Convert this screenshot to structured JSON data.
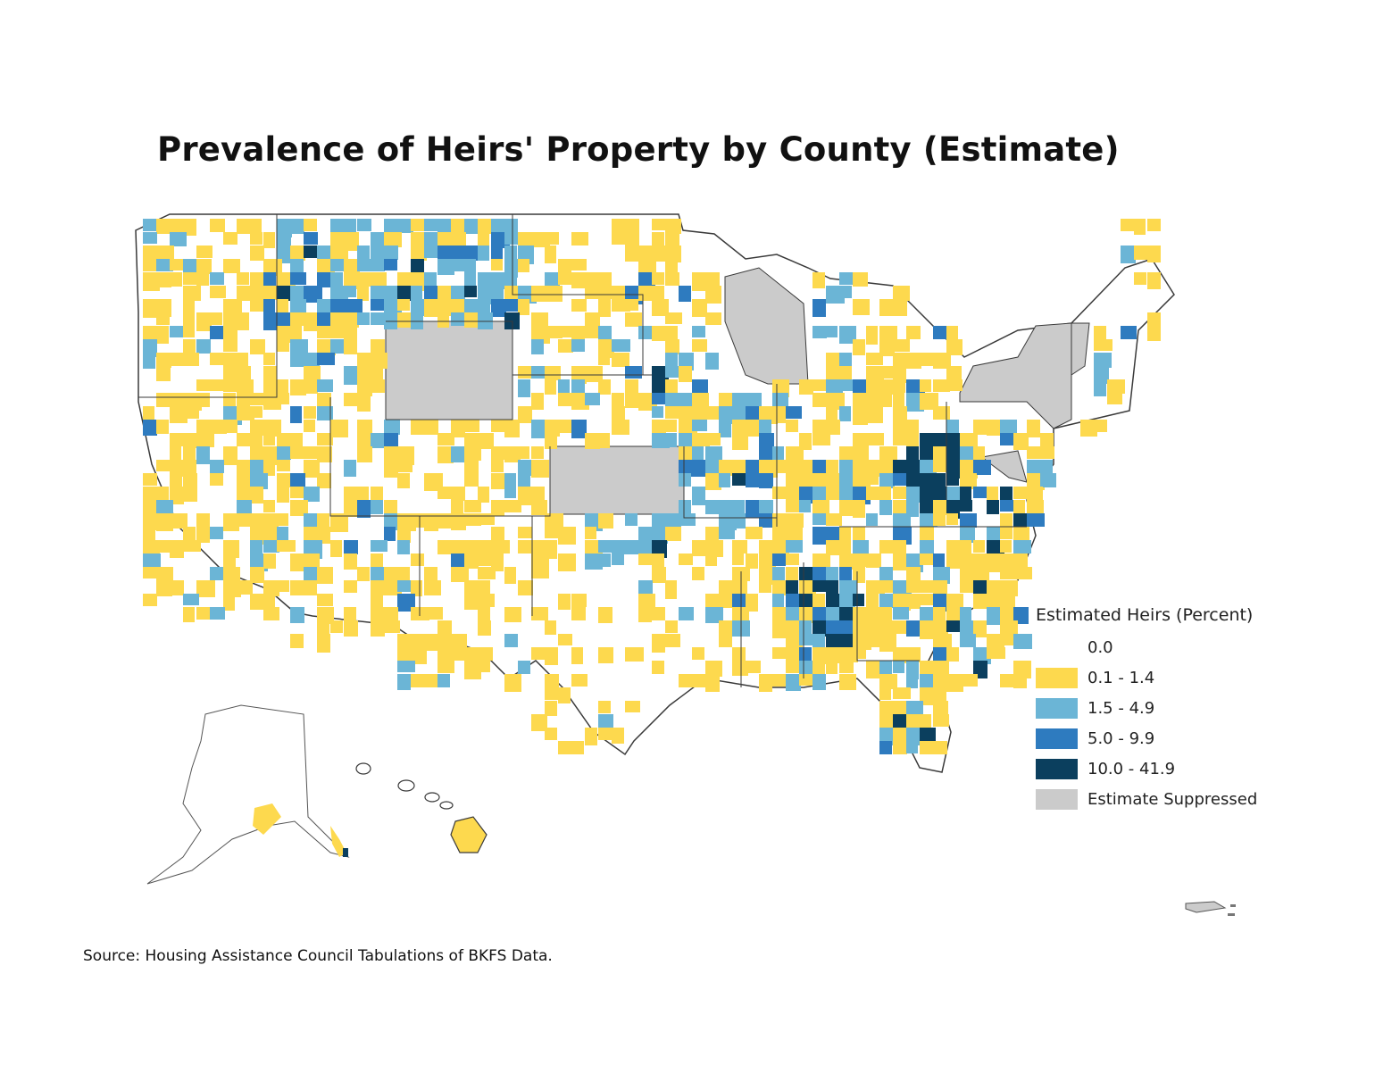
{
  "title": "Prevalence of Heirs' Property by County (Estimate)",
  "source": "Source: Housing Assistance Council Tabulations of BKFS Data.",
  "legend": {
    "title": "Estimated Heirs (Percent)",
    "items": [
      {
        "label": "0.0",
        "color": "#ffffff"
      },
      {
        "label": "0.1 - 1.4",
        "color": "#fdd94e"
      },
      {
        "label": "1.5 - 4.9",
        "color": "#6bb5d6"
      },
      {
        "label": "5.0 - 9.9",
        "color": "#2e7bbf"
      },
      {
        "label": "10.0 - 41.9",
        "color": "#0b3f5e"
      },
      {
        "label": "Estimate Suppressed",
        "color": "#cbcbcb"
      }
    ]
  },
  "colors": {
    "zero": "#ffffff",
    "low": "#fdd94e",
    "mid": "#6bb5d6",
    "high": "#2e7bbf",
    "top": "#0b3f5e",
    "suppressed": "#cbcbcb",
    "border": "#3a3a3a"
  },
  "suppressed_states": [
    "Wyoming",
    "Wisconsin",
    "Kansas",
    "New York",
    "Vermont",
    "Maryland"
  ]
}
